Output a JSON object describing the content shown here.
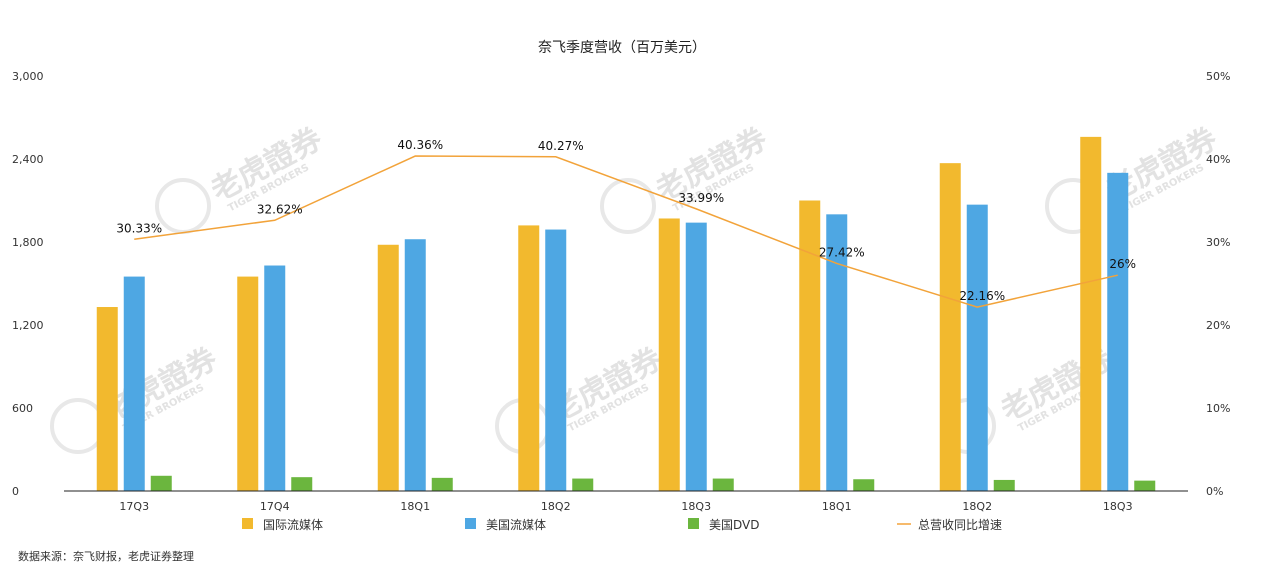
{
  "chart_data": {
    "type": "bar+line",
    "title": "奈飞季度营收（百万美元）",
    "categories": [
      "17Q3",
      "17Q4",
      "18Q1",
      "18Q2",
      "18Q3",
      "18Q1",
      "18Q2",
      "18Q3"
    ],
    "y_left": {
      "ticks": [
        "0",
        "600",
        "1,200",
        "1,800",
        "2,400",
        "3,000"
      ],
      "ylim": [
        0,
        3000
      ]
    },
    "y_right": {
      "ticks": [
        "0%",
        "10%",
        "20%",
        "30%",
        "40%",
        "50%"
      ],
      "ylim": [
        0,
        50
      ]
    },
    "series": [
      {
        "name": "国际流媒体",
        "type": "bar",
        "color": "#F2B92E",
        "values": [
          1330,
          1550,
          1780,
          1920,
          1970,
          2100,
          2370,
          2560
        ]
      },
      {
        "name": "美国流媒体",
        "type": "bar",
        "color": "#4EA7E3",
        "values": [
          1550,
          1630,
          1820,
          1890,
          1940,
          2000,
          2070,
          2300
        ]
      },
      {
        "name": "美国DVD",
        "type": "bar",
        "color": "#6BB63E",
        "values": [
          110,
          100,
          95,
          90,
          90,
          85,
          80,
          75
        ]
      },
      {
        "name": "总营收同比增速",
        "type": "line",
        "axis": "right",
        "color": "#F2A33A",
        "values": [
          30.33,
          32.62,
          40.36,
          40.27,
          33.99,
          27.42,
          22.16,
          26
        ],
        "labels": [
          "30.33%",
          "32.62%",
          "40.36%",
          "40.27%",
          "33.99%",
          "27.42%",
          "22.16%",
          "26%"
        ]
      }
    ],
    "grid": false,
    "legend_position": "bottom"
  },
  "source_text": "数据来源：奈飞财报，老虎证券整理",
  "watermark": {
    "cn": "老虎證券",
    "en": "TIGER BROKERS"
  }
}
